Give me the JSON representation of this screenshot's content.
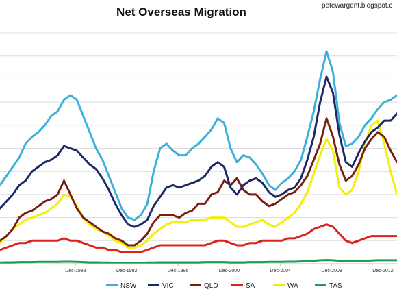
{
  "header": {
    "title": "Net Overseas Migration",
    "source": "petewargent.blogspot.c"
  },
  "chart_data": {
    "type": "line",
    "title": "Net Overseas Migration",
    "xlabel": "",
    "ylabel": "",
    "x": [
      1983.0,
      1983.5,
      1984.0,
      1984.5,
      1985.0,
      1985.5,
      1986.0,
      1986.5,
      1987.0,
      1987.5,
      1988.0,
      1988.5,
      1989.0,
      1989.5,
      1990.0,
      1990.5,
      1991.0,
      1991.5,
      1992.0,
      1992.5,
      1993.0,
      1993.5,
      1994.0,
      1994.5,
      1995.0,
      1995.5,
      1996.0,
      1996.5,
      1997.0,
      1997.5,
      1998.0,
      1998.5,
      1999.0,
      1999.5,
      2000.0,
      2000.5,
      2001.0,
      2001.5,
      2002.0,
      2002.5,
      2003.0,
      2003.5,
      2004.0,
      2004.5,
      2005.0,
      2005.5,
      2006.0,
      2006.5,
      2007.0,
      2007.5,
      2008.0,
      2008.5,
      2009.0,
      2009.5,
      2010.0,
      2010.5,
      2011.0,
      2011.5,
      2012.0,
      2012.5,
      2013.0,
      2013.5,
      2014.0
    ],
    "x_ticks": [
      {
        "label": "Dec-1988",
        "x": 1988.9
      },
      {
        "label": "Dec-1992",
        "x": 1992.9
      },
      {
        "label": "Dec-1996",
        "x": 1996.9
      },
      {
        "label": "Dec-2000",
        "x": 2000.9
      },
      {
        "label": "Dec-2004",
        "x": 2004.9
      },
      {
        "label": "Dec-2008",
        "x": 2008.9
      },
      {
        "label": "Dec-2012",
        "x": 2012.9
      }
    ],
    "xlim": [
      1983.0,
      2014.0
    ],
    "ylim": [
      0,
      100
    ],
    "grid": true,
    "legend_position": "bottom",
    "series": [
      {
        "name": "NSW",
        "color": "#3ab0dc",
        "values": [
          34,
          38,
          42,
          46,
          52,
          55,
          57,
          60,
          64,
          66,
          71,
          73,
          71,
          64,
          57,
          50,
          45,
          38,
          31,
          24,
          20,
          19,
          21,
          26,
          40,
          50,
          52,
          49,
          47,
          47,
          50,
          52,
          55,
          58,
          63,
          61,
          50,
          44,
          47,
          46,
          43,
          39,
          34,
          32,
          35,
          37,
          40,
          45,
          55,
          66,
          80,
          92,
          83,
          61,
          51,
          52,
          55,
          60,
          63,
          67,
          70,
          71,
          73
        ]
      },
      {
        "name": "VIC",
        "color": "#1b2a66",
        "values": [
          24,
          27,
          30,
          34,
          36,
          40,
          42,
          44,
          45,
          47,
          51,
          50,
          49,
          46,
          43,
          41,
          37,
          32,
          26,
          21,
          17,
          16,
          17,
          19,
          25,
          29,
          33,
          34,
          33,
          34,
          35,
          36,
          38,
          42,
          44,
          42,
          33,
          30,
          34,
          36,
          37,
          35,
          31,
          29,
          30,
          32,
          33,
          37,
          45,
          55,
          70,
          81,
          74,
          56,
          44,
          42,
          48,
          53,
          57,
          59,
          62,
          62,
          65
        ]
      },
      {
        "name": "QLD",
        "color": "#7a1e10",
        "values": [
          10,
          12,
          15,
          20,
          22,
          23,
          25,
          27,
          28,
          30,
          36,
          30,
          24,
          20,
          18,
          16,
          14,
          13,
          11,
          10,
          8,
          8,
          10,
          13,
          18,
          21,
          21,
          21,
          20,
          22,
          23,
          26,
          26,
          30,
          31,
          36,
          34,
          37,
          32,
          30,
          30,
          27,
          25,
          26,
          28,
          30,
          31,
          34,
          38,
          45,
          52,
          63,
          55,
          43,
          36,
          38,
          43,
          50,
          54,
          57,
          55,
          49,
          44
        ]
      },
      {
        "name": "SA",
        "color": "#d9231c",
        "values": [
          6,
          7,
          8,
          9,
          9,
          10,
          10,
          10,
          10,
          10,
          11,
          10,
          10,
          9,
          8,
          7,
          7,
          6,
          6,
          5,
          5,
          5,
          5,
          6,
          7,
          8,
          8,
          8,
          8,
          8,
          8,
          8,
          8,
          9,
          10,
          10,
          9,
          8,
          8,
          9,
          9,
          10,
          10,
          10,
          10,
          11,
          11,
          12,
          13,
          15,
          16,
          17,
          16,
          13,
          10,
          9,
          10,
          11,
          12,
          12,
          12,
          12,
          12
        ]
      },
      {
        "name": "WA",
        "color": "#f2f000",
        "values": [
          9,
          12,
          15,
          17,
          19,
          20,
          21,
          22,
          24,
          26,
          30,
          29,
          25,
          20,
          17,
          15,
          14,
          12,
          10,
          9,
          7,
          7,
          8,
          10,
          13,
          15,
          17,
          18,
          18,
          18,
          19,
          19,
          19,
          20,
          20,
          20,
          18,
          16,
          16,
          17,
          18,
          19,
          17,
          16,
          18,
          20,
          22,
          26,
          31,
          39,
          47,
          54,
          49,
          33,
          30,
          32,
          40,
          52,
          60,
          62,
          52,
          40,
          30
        ]
      },
      {
        "name": "TAS",
        "color": "#1e9b56",
        "values": [
          0.5,
          0.6,
          0.6,
          0.7,
          0.7,
          0.7,
          0.8,
          0.8,
          0.8,
          0.8,
          0.9,
          0.9,
          0.8,
          0.7,
          0.6,
          0.6,
          0.5,
          0.5,
          0.4,
          0.4,
          0.4,
          0.4,
          0.4,
          0.5,
          0.5,
          0.6,
          0.6,
          0.6,
          0.6,
          0.6,
          0.6,
          0.6,
          0.7,
          0.7,
          0.7,
          0.7,
          0.6,
          0.6,
          0.6,
          0.7,
          0.7,
          0.7,
          0.8,
          0.8,
          0.8,
          0.9,
          0.9,
          1.0,
          1.1,
          1.3,
          1.5,
          1.6,
          1.5,
          1.3,
          1.1,
          1.1,
          1.2,
          1.3,
          1.4,
          1.5,
          1.5,
          1.5,
          1.5
        ]
      }
    ]
  }
}
